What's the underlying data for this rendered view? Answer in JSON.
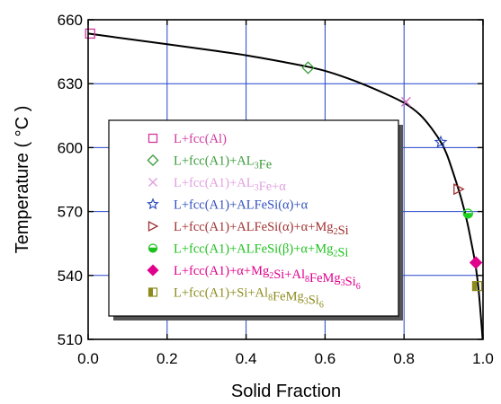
{
  "chart_data": {
    "type": "line",
    "title": "",
    "xlabel": "Solid Fraction",
    "ylabel_prefix": "Temperature ( ",
    "ylabel_unit": "°C",
    "ylabel_suffix": " )",
    "xlim": [
      0.0,
      1.0
    ],
    "ylim": [
      510,
      660
    ],
    "xticks": [
      0.0,
      0.2,
      0.4,
      0.6,
      0.8,
      1.0
    ],
    "xtick_labels": [
      "0.0",
      "0.2",
      "0.4",
      "0.6",
      "0.8",
      "1.0"
    ],
    "yticks": [
      510,
      540,
      570,
      600,
      630,
      660
    ],
    "ytick_labels": [
      "510",
      "540",
      "570",
      "600",
      "630",
      "660"
    ],
    "grid": true,
    "legend_position": "center-left",
    "curve": {
      "x": [
        0.0,
        0.1,
        0.2,
        0.3,
        0.4,
        0.5,
        0.56,
        0.6,
        0.65,
        0.7,
        0.75,
        0.8,
        0.84,
        0.87,
        0.895,
        0.91,
        0.93,
        0.945,
        0.96,
        0.972,
        0.98,
        0.986,
        0.99,
        0.994,
        0.997,
        0.999
      ],
      "y": [
        653.5,
        651,
        648.5,
        646,
        643.3,
        640,
        637.8,
        636,
        633,
        629.5,
        625.5,
        621,
        615.5,
        609,
        602,
        596,
        585,
        576,
        565,
        554,
        546,
        538,
        531,
        522,
        515,
        510
      ]
    },
    "markers": [
      {
        "x": 0.005,
        "y": 653.5,
        "shape": "square-open",
        "color": "#d0389c"
      },
      {
        "x": 0.557,
        "y": 637.5,
        "shape": "diamond-open",
        "color": "#3a9a3a"
      },
      {
        "x": 0.805,
        "y": 621.5,
        "shape": "cross",
        "color": "#d070c0"
      },
      {
        "x": 0.893,
        "y": 602.5,
        "shape": "star-open",
        "color": "#3050c0"
      },
      {
        "x": 0.938,
        "y": 580.5,
        "shape": "triangle-right-open",
        "color": "#a03030"
      },
      {
        "x": 0.962,
        "y": 569,
        "shape": "circle-half",
        "color": "#20d020"
      },
      {
        "x": 0.982,
        "y": 546,
        "shape": "diamond-filled",
        "color": "#e0008c"
      },
      {
        "x": 0.985,
        "y": 535,
        "shape": "square-half",
        "color": "#8c8a1c"
      }
    ],
    "legend": [
      {
        "shape": "square-open",
        "color": "#d0389c",
        "parts": [
          [
            "L+fcc(Al)",
            "n"
          ]
        ]
      },
      {
        "shape": "diamond-open",
        "color": "#3a9a3a",
        "parts": [
          [
            "L+fcc(A1)+AL",
            "n"
          ],
          [
            "3",
            "sub"
          ],
          [
            "Fe",
            "n"
          ]
        ]
      },
      {
        "shape": "cross",
        "color": "#e0a0e0",
        "parts": [
          [
            "L+fcc(A1)+AL",
            "n"
          ],
          [
            "3",
            "sub"
          ],
          [
            "Fe+α",
            "n"
          ]
        ]
      },
      {
        "shape": "star-open",
        "color": "#3050c0",
        "parts": [
          [
            "L+fcc(A1)+ALFeSi(α)+α",
            "n"
          ]
        ]
      },
      {
        "shape": "triangle-right-open",
        "color": "#a03030",
        "parts": [
          [
            "L+fcc(A1)+ALFeSi(α)+α+Mg",
            "n"
          ],
          [
            "2",
            "sub"
          ],
          [
            "Si",
            "n"
          ]
        ]
      },
      {
        "shape": "circle-half",
        "color": "#20c020",
        "parts": [
          [
            "L+fcc(A1)+ALFeSi(β)+α+Mg",
            "n"
          ],
          [
            "2",
            "sub"
          ],
          [
            "Si",
            "n"
          ]
        ]
      },
      {
        "shape": "diamond-filled",
        "color": "#e0008c",
        "parts": [
          [
            "L+fcc(A1)+α+Mg",
            "n"
          ],
          [
            "2",
            "sub"
          ],
          [
            "Si+Al",
            "n"
          ],
          [
            "8",
            "sub"
          ],
          [
            "FeMg",
            "n"
          ],
          [
            "3",
            "sub"
          ],
          [
            "Si",
            "n"
          ],
          [
            "6",
            "sub"
          ]
        ]
      },
      {
        "shape": "square-half",
        "color": "#8c8a1c",
        "parts": [
          [
            "L+fcc(A1)+Si+Al",
            "n"
          ],
          [
            "8",
            "sub"
          ],
          [
            "FeMg",
            "n"
          ],
          [
            "3",
            "sub"
          ],
          [
            "Si",
            "n"
          ],
          [
            "6",
            "sub"
          ]
        ]
      }
    ],
    "colors": {
      "grid": "#2244cc",
      "axes": "#000000",
      "curve": "#000000",
      "legend_border": "#000000",
      "legend_shadow": "#555555"
    }
  }
}
